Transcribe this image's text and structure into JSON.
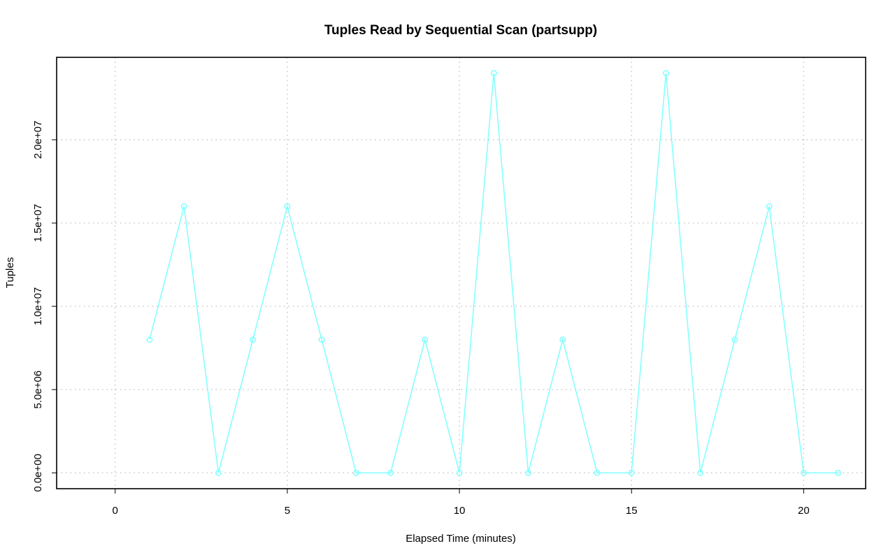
{
  "chart_data": {
    "type": "line",
    "title": "Tuples Read by Sequential Scan (partsupp)",
    "xlabel": "Elapsed Time (minutes)",
    "ylabel": "Tuples",
    "xlim": [
      -1.7,
      21.8
    ],
    "ylim": [
      -950000,
      24950000
    ],
    "x_ticks": [
      0,
      5,
      10,
      15,
      20
    ],
    "x_tick_labels": [
      "0",
      "5",
      "10",
      "15",
      "20"
    ],
    "y_ticks": [
      0,
      5000000,
      10000000,
      15000000,
      20000000
    ],
    "y_tick_labels": [
      "0.0e+00",
      "5.0e+06",
      "1.0e+07",
      "1.5e+07",
      "2.0e+07"
    ],
    "grid": true,
    "series": [
      {
        "color": "#7fffff",
        "marker": "circle",
        "x": [
          1,
          2,
          3,
          4,
          5,
          6,
          7,
          8,
          9,
          10,
          11,
          12,
          13,
          14,
          15,
          16,
          17,
          18,
          19,
          20,
          21
        ],
        "values": [
          8000000,
          16000000,
          0,
          8000000,
          16000000,
          8000000,
          0,
          0,
          8000000,
          0,
          24000000,
          0,
          8000000,
          0,
          0,
          24000000,
          0,
          8000000,
          16000000,
          0,
          0
        ]
      }
    ]
  }
}
